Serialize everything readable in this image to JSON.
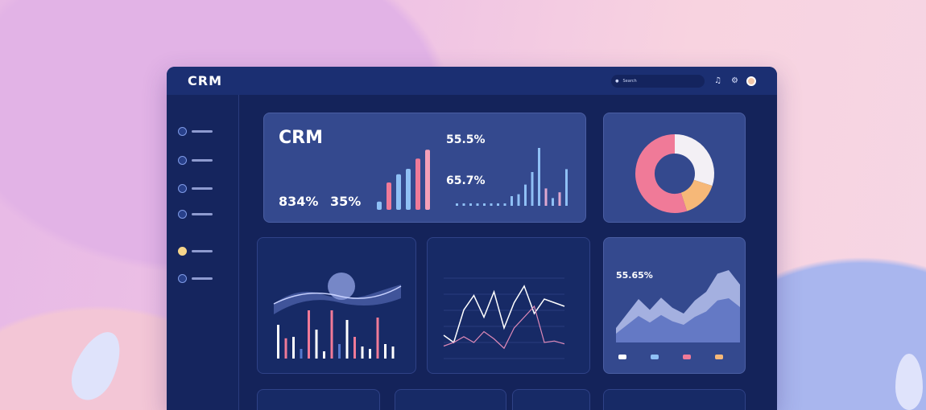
{
  "header": {
    "logo": "CRM",
    "search_placeholder": "Search",
    "icons": [
      "bell-icon",
      "settings-icon"
    ]
  },
  "sidebar": {
    "items": [
      {
        "icon": "dashboard-icon"
      },
      {
        "icon": "contacts-icon"
      },
      {
        "icon": "deals-icon"
      },
      {
        "icon": "reports-icon"
      },
      {
        "icon": "tasks-icon",
        "active": true
      },
      {
        "icon": "settings-icon"
      }
    ]
  },
  "summary": {
    "title": "CRM",
    "stat1": "834%",
    "stat2": "35%",
    "stat3": "55.5%",
    "stat4": "65.7%",
    "bars_left": [
      12,
      40,
      52,
      60,
      75,
      88
    ],
    "bars_right": [
      2,
      2,
      2,
      2,
      2,
      2,
      2,
      2,
      10,
      12,
      22,
      35,
      60,
      18,
      8,
      14,
      38
    ]
  },
  "donut": {
    "segments": [
      {
        "value": 30,
        "color": "#f3f0f5"
      },
      {
        "value": 15,
        "color": "#f6b878"
      },
      {
        "value": 55,
        "color": "#f07a98"
      }
    ]
  },
  "panel_bars": {
    "bars": [
      70,
      42,
      45,
      20,
      100,
      60,
      15,
      100,
      30,
      80,
      45,
      25,
      20,
      85,
      30,
      25
    ]
  },
  "panel_lines": {
    "series_a": [
      30,
      20,
      65,
      85,
      55,
      90,
      40,
      75,
      98,
      60,
      80,
      75,
      70
    ],
    "series_b": [
      15,
      20,
      28,
      20,
      35,
      25,
      12,
      40,
      55,
      70,
      20,
      22,
      18
    ]
  },
  "panel_area": {
    "stat": "55.65%",
    "values": [
      20,
      40,
      60,
      45,
      62,
      48,
      40,
      58,
      70,
      95,
      100,
      80
    ]
  },
  "colors": {
    "accent_pink": "#f07a98",
    "accent_blue": "#7fb1f0",
    "panel": "#172a66"
  }
}
